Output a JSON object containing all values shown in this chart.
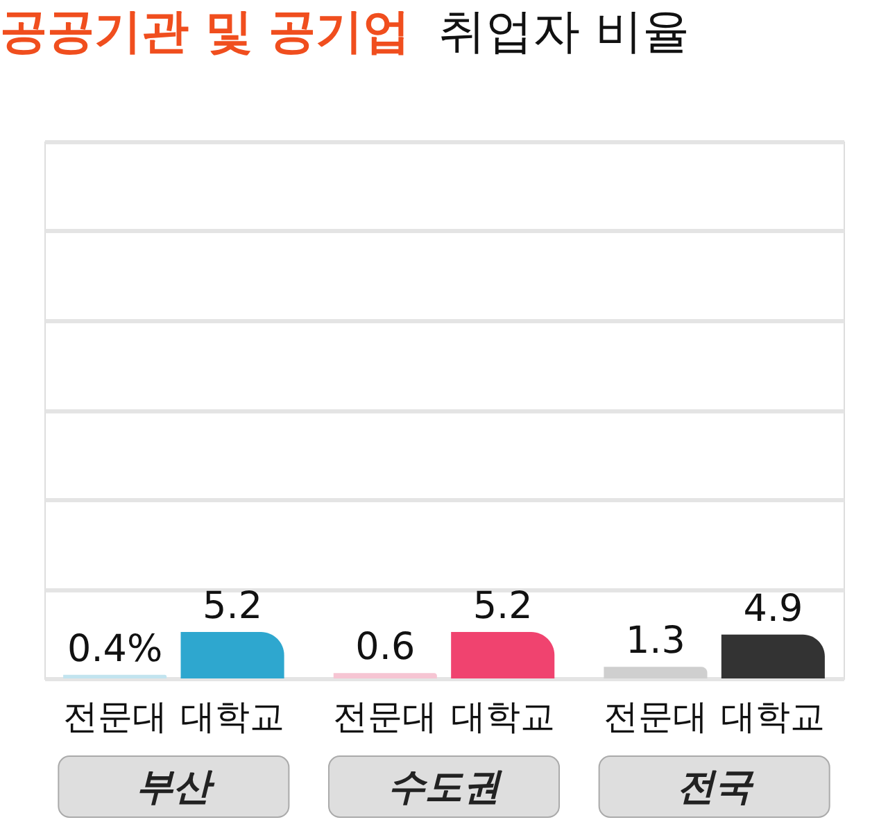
{
  "chart_data": {
    "type": "bar",
    "title": "공공기관 및 공기업",
    "subtitle": "취업자 비율",
    "categories": [
      "전문대",
      "대학교",
      "전문대",
      "대학교",
      "전문대",
      "대학교"
    ],
    "values": [
      0.4,
      5.2,
      0.6,
      5.2,
      1.3,
      4.9
    ],
    "colors": [
      "#c2e4ef",
      "#2ea7cf",
      "#f6c5d3",
      "#f0436f",
      "#cfcfcf",
      "#333333"
    ],
    "value_labels": [
      "0.4%",
      "5.2",
      "0.6",
      "5.2",
      "1.3",
      "4.9"
    ],
    "annotations": [
      "부산",
      "수도권",
      "전국"
    ],
    "ylim": [
      0,
      60
    ],
    "yticks": [
      {
        "value": 0,
        "label": null
      },
      {
        "value": 10,
        "label": null
      },
      {
        "value": 20,
        "label": null
      },
      {
        "value": 30,
        "label": null
      },
      {
        "value": 40,
        "label": null
      },
      {
        "value": 50,
        "label": null
      },
      {
        "value": 60,
        "label": null
      }
    ],
    "grid": "y"
  }
}
